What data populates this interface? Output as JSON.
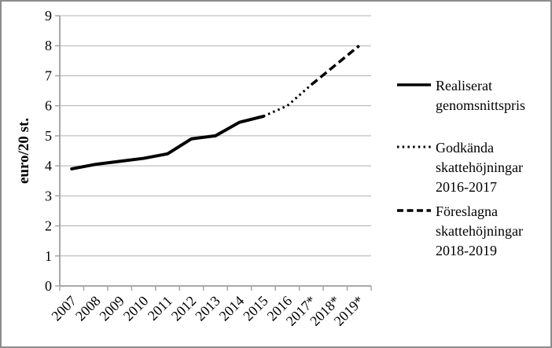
{
  "chart_data": {
    "type": "line",
    "title": "",
    "ylabel": "euro/20 st.",
    "xlabel": "",
    "ylim": [
      0,
      9
    ],
    "ytick_step": 1,
    "grid": "horizontal",
    "legend_position": "right",
    "x_label_rotation_deg": 45,
    "categories": [
      "2007",
      "2008",
      "2009",
      "2010",
      "2011",
      "2012",
      "2013",
      "2014",
      "2015",
      "2016",
      "2017*",
      "2018*",
      "2019*"
    ],
    "series": [
      {
        "name": "Realiserat genomsnittspris",
        "style": "solid",
        "start_index": 0,
        "values": [
          3.9,
          4.05,
          4.15,
          4.25,
          4.4,
          4.9,
          5.0,
          5.45,
          5.65
        ]
      },
      {
        "name": "Godkända skattehöjningar 2016-2017",
        "style": "dotted",
        "start_index": 8,
        "values": [
          5.65,
          6.0,
          6.7
        ]
      },
      {
        "name": "Föreslagna skattehöjningar 2018-2019",
        "style": "dashed",
        "start_index": 10,
        "values": [
          6.7,
          7.35,
          8.0
        ]
      }
    ]
  },
  "legend": {
    "items": [
      {
        "label": "Realiserat\ngenomsnittspris",
        "style": "solid"
      },
      {
        "label": "Godkända\nskattehöjningar\n2016-2017",
        "style": "dotted"
      },
      {
        "label": "Föreslagna\nskattehöjningar\n2018-2019",
        "style": "dashed"
      }
    ]
  },
  "colors": {
    "series_line": "#000000",
    "grid_line": "#b0b0b0",
    "axis_line": "#8c8c8c",
    "tick_line": "#a6a6a6",
    "text": "#000000",
    "figure_border": "#8c8c8c",
    "background": "#ffffff"
  }
}
